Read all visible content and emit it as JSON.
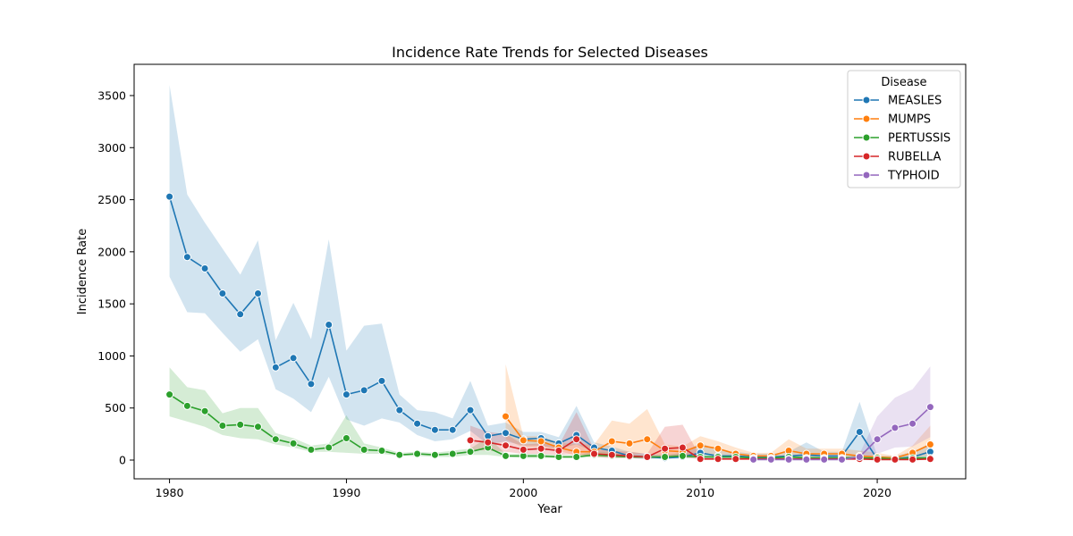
{
  "chart_data": {
    "type": "line",
    "title": "Incidence Rate Trends for Selected Diseases",
    "xlabel": "Year",
    "ylabel": "Incidence Rate",
    "xlim": [
      1978,
      2025
    ],
    "ylim": [
      -180,
      3800
    ],
    "xticks": [
      1980,
      1990,
      2000,
      2010,
      2020
    ],
    "yticks": [
      0,
      500,
      1000,
      1500,
      2000,
      2500,
      3000,
      3500
    ],
    "grid": false,
    "legend": {
      "title": "Disease",
      "placement": "top-right"
    },
    "series": [
      {
        "name": "MEASLES",
        "color": "#1f77b4",
        "x": [
          1980,
          1981,
          1982,
          1983,
          1984,
          1985,
          1986,
          1987,
          1988,
          1989,
          1990,
          1991,
          1992,
          1993,
          1994,
          1995,
          1996,
          1997,
          1998,
          1999,
          2000,
          2001,
          2002,
          2003,
          2004,
          2005,
          2006,
          2007,
          2008,
          2009,
          2010,
          2011,
          2012,
          2013,
          2014,
          2015,
          2016,
          2017,
          2018,
          2019,
          2020,
          2021,
          2022,
          2023
        ],
        "y": [
          2530,
          1950,
          1840,
          1600,
          1400,
          1600,
          890,
          980,
          730,
          1300,
          630,
          670,
          760,
          480,
          350,
          290,
          290,
          480,
          230,
          260,
          200,
          210,
          160,
          240,
          120,
          90,
          40,
          30,
          20,
          30,
          70,
          40,
          40,
          30,
          30,
          40,
          50,
          40,
          40,
          270,
          10,
          10,
          30,
          80
        ],
        "low": [
          1760,
          1420,
          1410,
          1220,
          1040,
          1160,
          680,
          590,
          460,
          800,
          390,
          330,
          400,
          360,
          240,
          180,
          200,
          280,
          150,
          180,
          140,
          140,
          110,
          150,
          80,
          60,
          20,
          10,
          10,
          15,
          30,
          15,
          15,
          10,
          10,
          20,
          20,
          15,
          15,
          20,
          0,
          0,
          10,
          20
        ],
        "high": [
          3600,
          2550,
          2280,
          2030,
          1780,
          2110,
          1150,
          1510,
          1160,
          2120,
          1050,
          1290,
          1310,
          630,
          480,
          460,
          400,
          760,
          330,
          360,
          270,
          270,
          220,
          520,
          170,
          130,
          80,
          60,
          40,
          60,
          170,
          90,
          80,
          60,
          60,
          80,
          170,
          80,
          80,
          560,
          40,
          40,
          80,
          160
        ]
      },
      {
        "name": "MUMPS",
        "color": "#ff7f0e",
        "x": [
          1999,
          2000,
          2001,
          2002,
          2003,
          2004,
          2005,
          2006,
          2007,
          2008,
          2009,
          2010,
          2011,
          2012,
          2013,
          2014,
          2015,
          2016,
          2017,
          2018,
          2019,
          2020,
          2021,
          2022,
          2023
        ],
        "y": [
          420,
          190,
          180,
          120,
          80,
          80,
          180,
          160,
          200,
          90,
          80,
          140,
          110,
          60,
          40,
          40,
          90,
          60,
          60,
          60,
          40,
          30,
          20,
          70,
          150
        ],
        "low": [
          200,
          120,
          130,
          90,
          40,
          30,
          40,
          50,
          70,
          30,
          20,
          70,
          40,
          20,
          10,
          10,
          30,
          10,
          10,
          10,
          10,
          10,
          5,
          30,
          40
        ],
        "high": [
          920,
          230,
          230,
          170,
          150,
          150,
          380,
          350,
          490,
          150,
          130,
          230,
          180,
          120,
          70,
          70,
          200,
          110,
          110,
          110,
          90,
          70,
          40,
          140,
          330
        ]
      },
      {
        "name": "PERTUSSIS",
        "color": "#2ca02c",
        "x": [
          1980,
          1981,
          1982,
          1983,
          1984,
          1985,
          1986,
          1987,
          1988,
          1989,
          1990,
          1991,
          1992,
          1993,
          1994,
          1995,
          1996,
          1997,
          1998,
          1999,
          2000,
          2001,
          2002,
          2003,
          2004,
          2005,
          2006,
          2007,
          2008,
          2009,
          2010,
          2011,
          2012,
          2013,
          2014,
          2015,
          2016,
          2017,
          2018,
          2019,
          2020,
          2021,
          2022,
          2023
        ],
        "y": [
          630,
          520,
          470,
          330,
          340,
          320,
          200,
          160,
          100,
          120,
          210,
          100,
          90,
          50,
          60,
          50,
          60,
          80,
          120,
          40,
          40,
          40,
          30,
          30,
          50,
          40,
          30,
          30,
          30,
          40,
          30,
          30,
          30,
          20,
          20,
          30,
          20,
          20,
          20,
          20,
          20,
          10,
          20,
          20
        ],
        "low": [
          420,
          370,
          320,
          240,
          210,
          200,
          150,
          120,
          80,
          80,
          70,
          60,
          60,
          40,
          40,
          30,
          30,
          50,
          50,
          30,
          20,
          20,
          20,
          20,
          30,
          20,
          20,
          20,
          20,
          20,
          20,
          20,
          20,
          10,
          10,
          10,
          10,
          10,
          10,
          10,
          10,
          5,
          10,
          10
        ],
        "high": [
          890,
          700,
          670,
          450,
          500,
          500,
          260,
          210,
          140,
          160,
          430,
          160,
          120,
          70,
          80,
          70,
          90,
          110,
          220,
          60,
          60,
          60,
          50,
          50,
          80,
          70,
          50,
          50,
          50,
          70,
          50,
          50,
          50,
          30,
          30,
          50,
          40,
          40,
          40,
          40,
          40,
          30,
          40,
          40
        ]
      },
      {
        "name": "RUBELLA",
        "color": "#d62728",
        "x": [
          1997,
          1998,
          1999,
          2000,
          2001,
          2002,
          2003,
          2004,
          2005,
          2006,
          2007,
          2008,
          2009,
          2010,
          2011,
          2012,
          2013,
          2014,
          2015,
          2016,
          2017,
          2018,
          2019,
          2020,
          2021,
          2022,
          2023
        ],
        "y": [
          190,
          170,
          140,
          100,
          110,
          90,
          200,
          60,
          50,
          40,
          30,
          110,
          120,
          10,
          10,
          10,
          10,
          10,
          10,
          10,
          10,
          10,
          10,
          5,
          5,
          5,
          10
        ],
        "low": [
          100,
          90,
          80,
          60,
          60,
          50,
          60,
          30,
          20,
          20,
          10,
          30,
          30,
          5,
          5,
          5,
          5,
          5,
          5,
          5,
          5,
          5,
          5,
          0,
          0,
          0,
          5
        ],
        "high": [
          330,
          270,
          250,
          150,
          160,
          140,
          460,
          100,
          90,
          80,
          60,
          320,
          340,
          30,
          20,
          20,
          20,
          20,
          20,
          20,
          20,
          20,
          20,
          15,
          15,
          15,
          20
        ]
      },
      {
        "name": "TYPHOID",
        "color": "#9467bd",
        "x": [
          2013,
          2014,
          2015,
          2016,
          2017,
          2018,
          2019,
          2020,
          2021,
          2022,
          2023
        ],
        "y": [
          5,
          5,
          5,
          5,
          5,
          5,
          30,
          200,
          310,
          350,
          510
        ],
        "low": [
          0,
          0,
          0,
          0,
          0,
          0,
          10,
          60,
          120,
          130,
          220
        ],
        "high": [
          15,
          15,
          15,
          15,
          15,
          15,
          60,
          420,
          600,
          680,
          900
        ]
      }
    ]
  }
}
